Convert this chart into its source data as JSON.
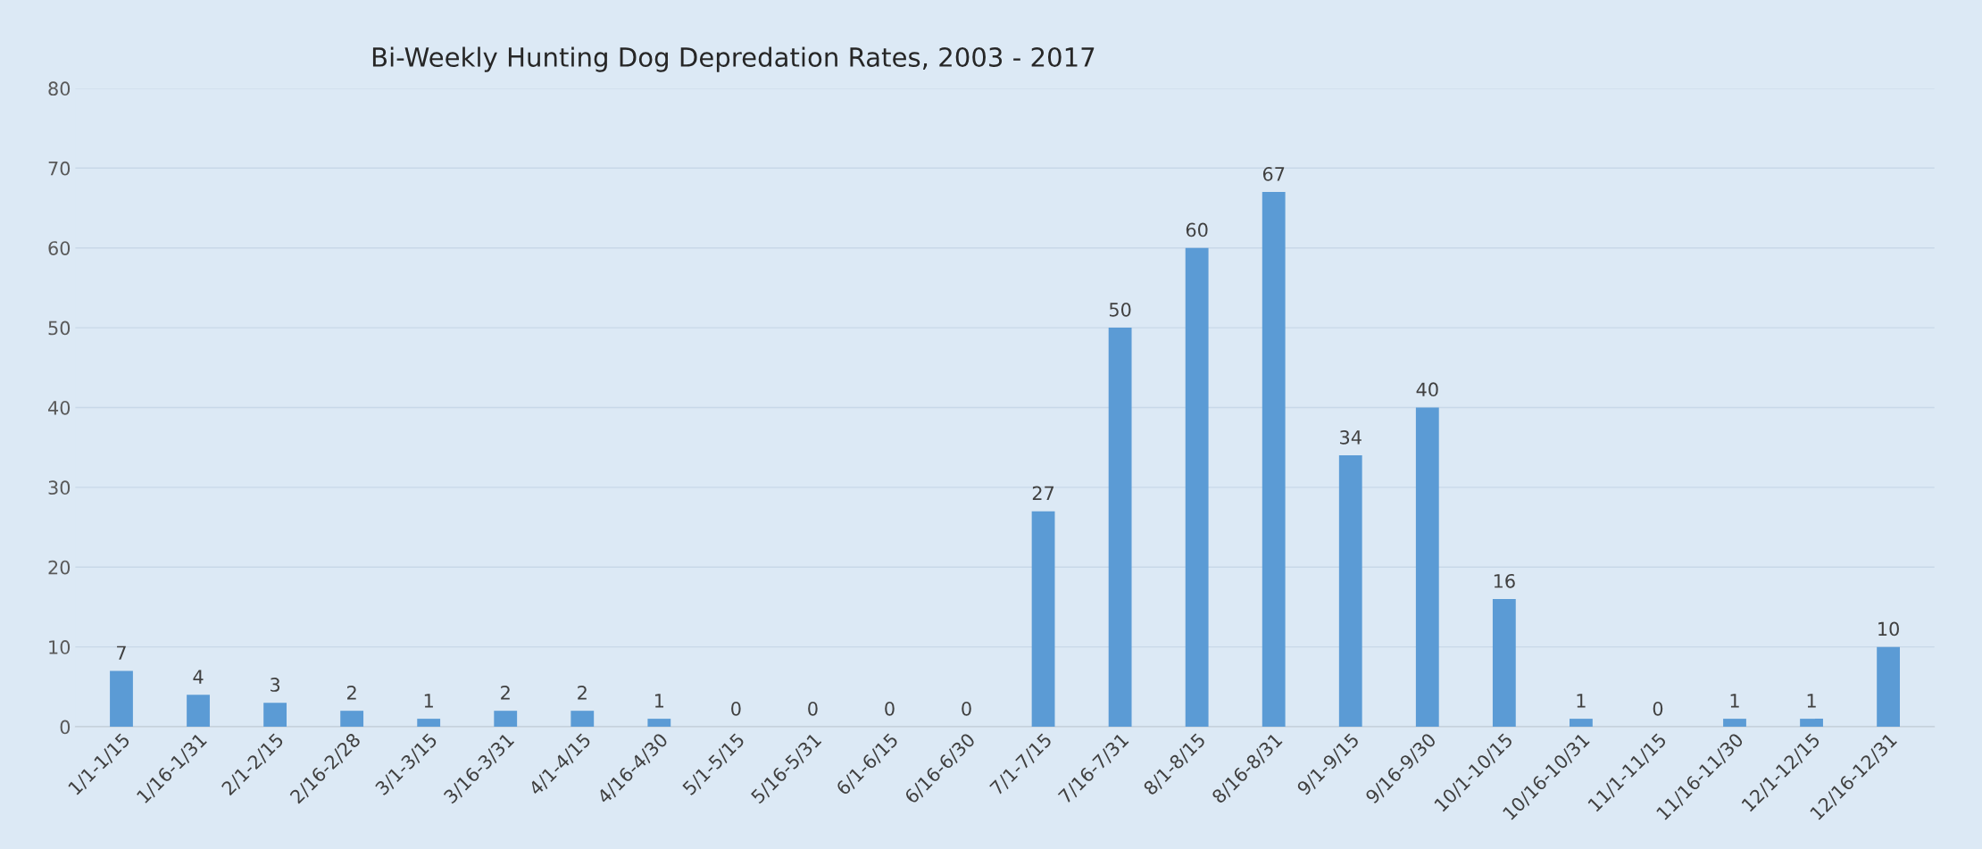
{
  "chart_data": {
    "type": "bar",
    "title": "Bi-Weekly Hunting Dog Depredation Rates, 2003 - 2017",
    "categories": [
      "1/1-1/15",
      "1/16-1/31",
      "2/1-2/15",
      "2/16-2/28",
      "3/1-3/15",
      "3/16-3/31",
      "4/1-4/15",
      "4/16-4/30",
      "5/1-5/15",
      "5/16-5/31",
      "6/1-6/15",
      "6/16-6/30",
      "7/1-7/15",
      "7/16-7/31",
      "8/1-8/15",
      "8/16-8/31",
      "9/1-9/15",
      "9/16-9/30",
      "10/1-10/15",
      "10/16-10/31",
      "11/1-11/15",
      "11/16-11/30",
      "12/1-12/15",
      "12/16-12/31"
    ],
    "values": [
      7,
      4,
      3,
      2,
      1,
      2,
      2,
      1,
      0,
      0,
      0,
      0,
      27,
      50,
      60,
      67,
      34,
      40,
      16,
      1,
      0,
      1,
      1,
      10
    ],
    "color": "#5b9bd5",
    "ylim": [
      0,
      80
    ],
    "yticks": [
      0,
      10,
      20,
      30,
      40,
      50,
      60,
      70,
      80
    ],
    "grid": "y",
    "data_labels": true
  }
}
